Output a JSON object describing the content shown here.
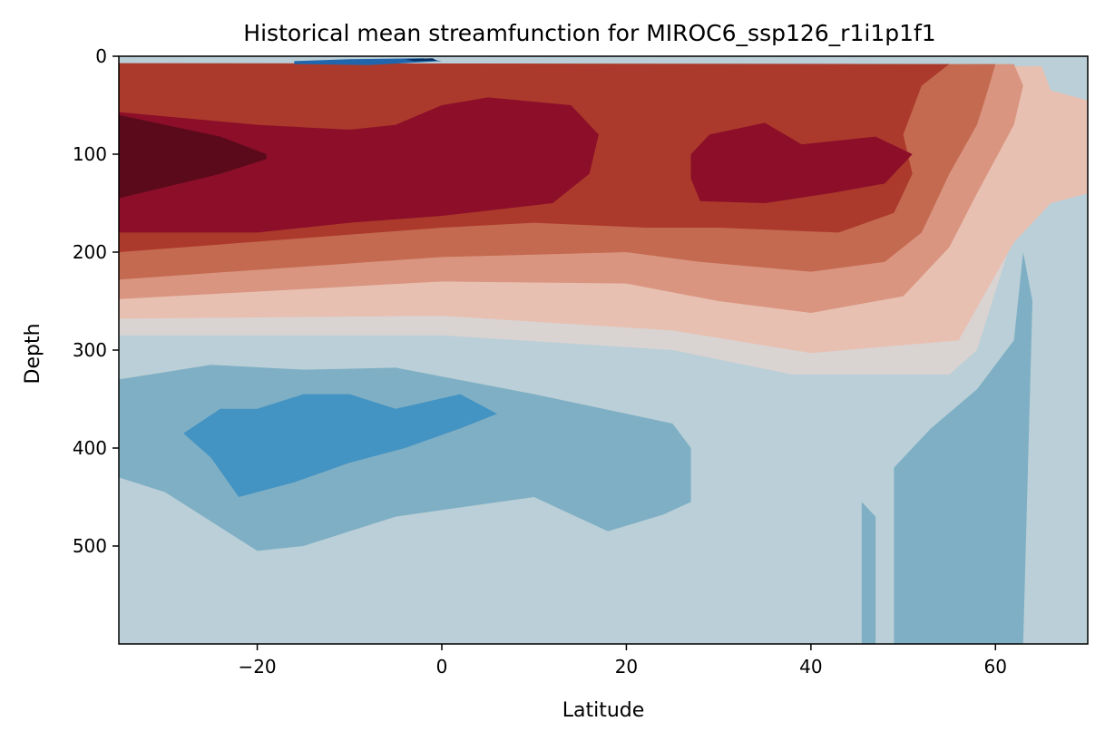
{
  "chart_data": {
    "type": "heatmap",
    "title": "Historical mean streamfunction for MIROC6_ssp126_r1i1p1f1",
    "xlabel": "Latitude",
    "ylabel": "Depth",
    "xlim": [
      -35,
      70
    ],
    "ylim": [
      600,
      0
    ],
    "y_inverted": true,
    "x_ticks": [
      -20,
      0,
      20,
      40,
      60
    ],
    "x_tick_labels": [
      "−20",
      "0",
      "20",
      "40",
      "60"
    ],
    "y_ticks": [
      0,
      100,
      200,
      300,
      400,
      500
    ],
    "y_tick_labels": [
      "0",
      "100",
      "200",
      "300",
      "400",
      "500"
    ],
    "colormap": "RdBu_r",
    "legend": "none",
    "grid": false,
    "level_colors": {
      "navy": "#053061",
      "blue_deep": "#2166ac",
      "blue_mid": "#4393c3",
      "blue_light": "#7fafc4",
      "blue_pale": "#bacfd7",
      "neutral": "#d9d3d2",
      "red_pale": "#e8c0b2",
      "red_light": "#d99580",
      "red_mid": "#c46a50",
      "red_strong": "#ab3a2c",
      "red_dark": "#8c0e29",
      "red_darkest": "#5b0a1b"
    },
    "regions": [
      {
        "level": "blue_pale",
        "polygon": [
          [
            -35,
            0
          ],
          [
            70,
            0
          ],
          [
            70,
            600
          ],
          [
            -35,
            600
          ]
        ]
      },
      {
        "level": "neutral",
        "polygon": [
          [
            -35,
            15
          ],
          [
            20,
            15
          ],
          [
            38,
            12
          ],
          [
            55,
            12
          ],
          [
            62,
            25
          ],
          [
            66,
            80
          ],
          [
            63,
            150
          ],
          [
            61,
            210
          ],
          [
            58,
            300
          ],
          [
            55,
            325
          ],
          [
            38,
            325
          ],
          [
            25,
            300
          ],
          [
            0,
            285
          ],
          [
            -35,
            285
          ]
        ]
      },
      {
        "level": "red_pale",
        "polygon": [
          [
            -35,
            13
          ],
          [
            65,
            10
          ],
          [
            66,
            35
          ],
          [
            70,
            45
          ],
          [
            70,
            140
          ],
          [
            66,
            150
          ],
          [
            62,
            190
          ],
          [
            59,
            240
          ],
          [
            56,
            290
          ],
          [
            40,
            303
          ],
          [
            25,
            280
          ],
          [
            0,
            265
          ],
          [
            -35,
            268
          ]
        ]
      },
      {
        "level": "red_light",
        "polygon": [
          [
            -35,
            11
          ],
          [
            62,
            8
          ],
          [
            63,
            30
          ],
          [
            62,
            70
          ],
          [
            58,
            140
          ],
          [
            55,
            195
          ],
          [
            50,
            245
          ],
          [
            40,
            262
          ],
          [
            30,
            250
          ],
          [
            20,
            232
          ],
          [
            0,
            230
          ],
          [
            -35,
            248
          ]
        ]
      },
      {
        "level": "red_mid",
        "polygon": [
          [
            -35,
            10
          ],
          [
            60,
            8
          ],
          [
            59,
            40
          ],
          [
            58,
            70
          ],
          [
            55,
            120
          ],
          [
            52,
            180
          ],
          [
            48,
            210
          ],
          [
            40,
            220
          ],
          [
            28,
            210
          ],
          [
            20,
            200
          ],
          [
            0,
            205
          ],
          [
            -35,
            228
          ]
        ]
      },
      {
        "level": "red_strong",
        "polygon": [
          [
            -35,
            7
          ],
          [
            55,
            8
          ],
          [
            52,
            30
          ],
          [
            50,
            80
          ],
          [
            51,
            120
          ],
          [
            49,
            160
          ],
          [
            43,
            180
          ],
          [
            30,
            175
          ],
          [
            22,
            175
          ],
          [
            10,
            170
          ],
          [
            0,
            175
          ],
          [
            -35,
            200
          ]
        ]
      },
      {
        "level": "red_dark",
        "polygon": [
          [
            -35,
            57
          ],
          [
            -20,
            70
          ],
          [
            -10,
            75
          ],
          [
            -5,
            70
          ],
          [
            0,
            50
          ],
          [
            5,
            42
          ],
          [
            14,
            50
          ],
          [
            17,
            80
          ],
          [
            16,
            120
          ],
          [
            12,
            150
          ],
          [
            0,
            163
          ],
          [
            -10,
            170
          ],
          [
            -20,
            180
          ],
          [
            -35,
            180
          ]
        ]
      },
      {
        "level": "red_dark",
        "polygon": [
          [
            27,
            100
          ],
          [
            29,
            80
          ],
          [
            35,
            68
          ],
          [
            39,
            90
          ],
          [
            47,
            82
          ],
          [
            51,
            100
          ],
          [
            48,
            130
          ],
          [
            42,
            140
          ],
          [
            35,
            150
          ],
          [
            28,
            148
          ],
          [
            27,
            125
          ]
        ]
      },
      {
        "level": "red_darkest",
        "polygon": [
          [
            -35,
            60
          ],
          [
            -24,
            82
          ],
          [
            -19,
            100
          ],
          [
            -19,
            105
          ],
          [
            -24,
            120
          ],
          [
            -35,
            145
          ]
        ]
      },
      {
        "level": "blue_light",
        "polygon": [
          [
            -35,
            330
          ],
          [
            -25,
            315
          ],
          [
            -15,
            320
          ],
          [
            -5,
            318
          ],
          [
            10,
            345
          ],
          [
            25,
            375
          ],
          [
            27,
            400
          ],
          [
            27,
            455
          ],
          [
            24,
            468
          ],
          [
            18,
            485
          ],
          [
            10,
            450
          ],
          [
            -5,
            470
          ],
          [
            -15,
            500
          ],
          [
            -20,
            505
          ],
          [
            -30,
            445
          ],
          [
            -35,
            430
          ]
        ]
      },
      {
        "level": "blue_mid",
        "polygon": [
          [
            -28,
            385
          ],
          [
            -24,
            360
          ],
          [
            -20,
            360
          ],
          [
            -15,
            345
          ],
          [
            -10,
            345
          ],
          [
            -5,
            360
          ],
          [
            2,
            345
          ],
          [
            6,
            365
          ],
          [
            2,
            380
          ],
          [
            -4,
            400
          ],
          [
            -10,
            415
          ],
          [
            -16,
            435
          ],
          [
            -22,
            450
          ],
          [
            -25,
            410
          ]
        ]
      },
      {
        "level": "blue_light",
        "polygon": [
          [
            49,
            600
          ],
          [
            49,
            420
          ],
          [
            53,
            380
          ],
          [
            58,
            340
          ],
          [
            62,
            290
          ],
          [
            63,
            200
          ],
          [
            64,
            250
          ],
          [
            63,
            600
          ]
        ]
      },
      {
        "level": "blue_light",
        "polygon": [
          [
            45.5,
            600
          ],
          [
            45.5,
            455
          ],
          [
            47,
            470
          ],
          [
            47,
            600
          ]
        ]
      },
      {
        "level": "blue_deep",
        "polygon": [
          [
            -16,
            5
          ],
          [
            -10,
            3
          ],
          [
            -2,
            2
          ],
          [
            0,
            5
          ],
          [
            -8,
            9
          ],
          [
            -16,
            8
          ]
        ]
      },
      {
        "level": "navy",
        "polygon": [
          [
            -4,
            3
          ],
          [
            -1,
            2
          ],
          [
            -0.5,
            4.5
          ],
          [
            -3,
            5
          ]
        ]
      }
    ]
  }
}
